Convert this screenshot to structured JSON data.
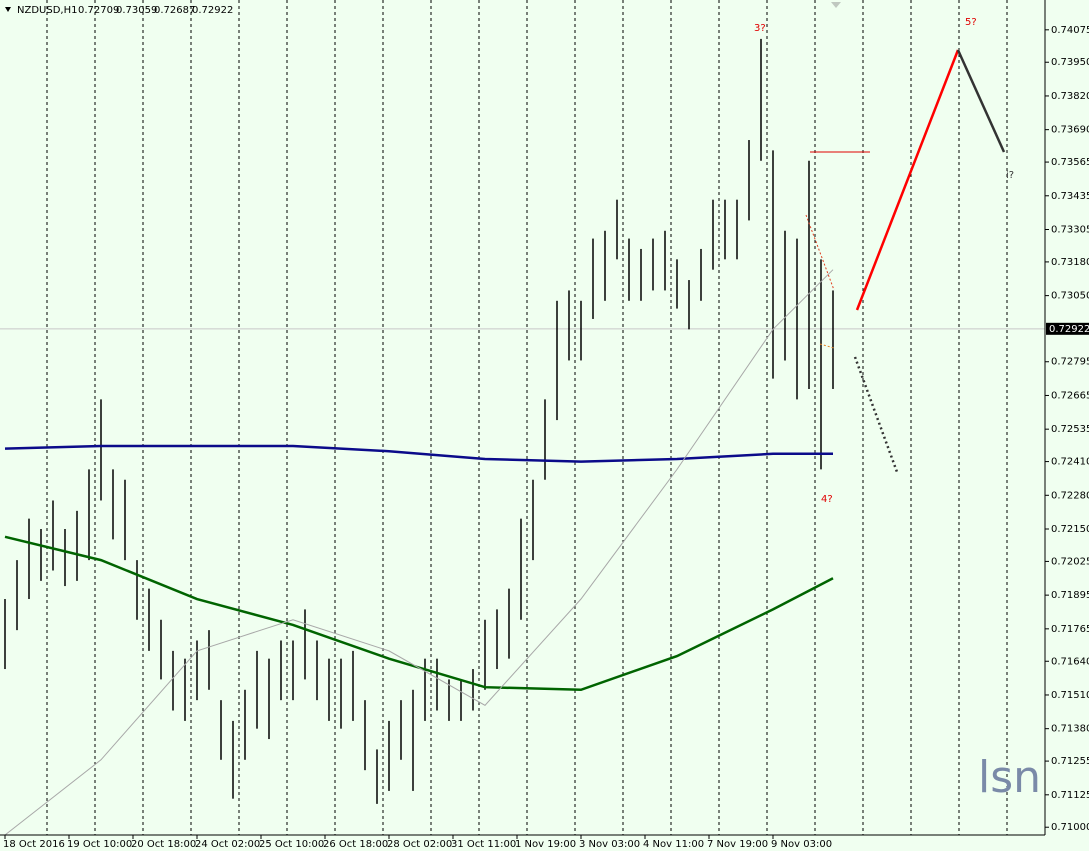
{
  "chart_data": {
    "type": "ohlc",
    "symbol": "NZDUSD,H1",
    "quote": [
      0.72709,
      0.73059,
      0.72687,
      0.72922
    ],
    "color": "#000000",
    "x": [
      0,
      6,
      12,
      18,
      24,
      30,
      36,
      42,
      48,
      54,
      60,
      66,
      72,
      78,
      84,
      90,
      96,
      102,
      108,
      114,
      120,
      126,
      132,
      138,
      144,
      150,
      156,
      162,
      168,
      174,
      180,
      186,
      192,
      198,
      204,
      210,
      216,
      222,
      228,
      234,
      240,
      246,
      252,
      258,
      264,
      270,
      276,
      282,
      288,
      294,
      300,
      306,
      312,
      318,
      324,
      330,
      336,
      342,
      348,
      354,
      360,
      366,
      372,
      378,
      384,
      390,
      396,
      402,
      408,
      414
    ],
    "high": [
      0.7188,
      0.7203,
      0.7219,
      0.7215,
      0.7226,
      0.7215,
      0.7222,
      0.7238,
      0.7265,
      0.7238,
      0.7234,
      0.7203,
      0.7192,
      0.718,
      0.7168,
      0.7165,
      0.7172,
      0.7176,
      0.7149,
      0.7141,
      0.7153,
      0.7168,
      0.7165,
      0.7172,
      0.7172,
      0.7184,
      0.7172,
      0.7165,
      0.7165,
      0.7168,
      0.7149,
      0.713,
      0.7141,
      0.7149,
      0.7153,
      0.7165,
      0.7165,
      0.7157,
      0.7157,
      0.7161,
      0.718,
      0.7184,
      0.7192,
      0.7219,
      0.7234,
      0.7265,
      0.7303,
      0.7307,
      0.7303,
      0.7327,
      0.733,
      0.7342,
      0.7327,
      0.7323,
      0.7327,
      0.733,
      0.7319,
      0.7311,
      0.7323,
      0.7342,
      0.7342,
      0.7342,
      0.7365,
      0.7404,
      0.7361,
      0.733,
      0.7327,
      0.7357,
      0.7319,
      0.7307
    ],
    "low": [
      0.7161,
      0.7176,
      0.7188,
      0.7195,
      0.7199,
      0.7193,
      0.7195,
      0.7203,
      0.7226,
      0.7211,
      0.7203,
      0.718,
      0.7168,
      0.7157,
      0.7145,
      0.7141,
      0.7149,
      0.7153,
      0.7126,
      0.7111,
      0.7126,
      0.7138,
      0.7134,
      0.7149,
      0.7149,
      0.7157,
      0.7149,
      0.7141,
      0.7138,
      0.7141,
      0.7122,
      0.7109,
      0.7114,
      0.7126,
      0.7114,
      0.7141,
      0.7145,
      0.7141,
      0.7141,
      0.7145,
      0.7153,
      0.7161,
      0.7165,
      0.718,
      0.7203,
      0.7234,
      0.7257,
      0.728,
      0.728,
      0.7296,
      0.7303,
      0.7319,
      0.7303,
      0.7303,
      0.7307,
      0.7307,
      0.73,
      0.7292,
      0.7303,
      0.7315,
      0.7319,
      0.7319,
      0.7334,
      0.7357,
      0.7273,
      0.728,
      0.7265,
      0.7269,
      0.7238,
      0.7269
    ],
    "series": [
      {
        "color": "#0b0b8a",
        "width": 2.5,
        "x": [
          0,
          48,
          96,
          144,
          192,
          240,
          288,
          336,
          384,
          414
        ],
        "values": [
          0.7246,
          0.7247,
          0.7247,
          0.7247,
          0.7245,
          0.7242,
          0.7241,
          0.7242,
          0.7244,
          0.7244
        ]
      },
      {
        "color": "#006400",
        "width": 2.5,
        "x": [
          0,
          48,
          96,
          144,
          192,
          240,
          288,
          336,
          384,
          414
        ],
        "values": [
          0.7212,
          0.7203,
          0.7188,
          0.7178,
          0.7165,
          0.7154,
          0.7153,
          0.7166,
          0.7184,
          0.7196
        ]
      },
      {
        "color": "#a8a8a8",
        "width": 1,
        "x": [
          0,
          48,
          96,
          144,
          192,
          240,
          288,
          336,
          384,
          414
        ],
        "values": [
          0.7097,
          0.7126,
          0.7168,
          0.718,
          0.7168,
          0.7147,
          0.7188,
          0.7238,
          0.7292,
          0.7315
        ]
      }
    ],
    "xlim": [
      -2.5,
      520
    ],
    "xticks": [
      {
        "value": 0,
        "label": "18 Oct 2016"
      },
      {
        "value": 32,
        "label": "19 Oct 10:00"
      },
      {
        "value": 64,
        "label": "20 Oct 18:00"
      },
      {
        "value": 96,
        "label": "24 Oct 02:00"
      },
      {
        "value": 128,
        "label": "25 Oct 10:00"
      },
      {
        "value": 160,
        "label": "26 Oct 18:00"
      },
      {
        "value": 192,
        "label": "28 Oct 02:00"
      },
      {
        "value": 224,
        "label": "31 Oct 11:00"
      },
      {
        "value": 256,
        "label": "1 Nov 19:00"
      },
      {
        "value": 288,
        "label": "3 Nov 03:00"
      },
      {
        "value": 320,
        "label": "4 Nov 11:00"
      },
      {
        "value": 352,
        "label": "7 Nov 19:00"
      },
      {
        "value": 384,
        "label": "9 Nov 03:00"
      }
    ],
    "ylim": [
      0.7097,
      0.7419
    ],
    "yticks": [
      0.74075,
      {
        "value": 0.7395,
        "label": "0.73950"
      },
      {
        "value": 0.7382,
        "label": "0.73820"
      },
      {
        "value": 0.7369,
        "label": "0.73690"
      },
      0.73565,
      0.73435,
      0.73305,
      {
        "value": 0.7318,
        "label": "0.73180"
      },
      {
        "value": 0.7305,
        "label": "0.73050"
      },
      0.72795,
      0.72665,
      0.72535,
      {
        "value": 0.7241,
        "label": "0.72410"
      },
      {
        "value": 0.7228,
        "label": "0.72280"
      },
      {
        "value": 0.7215,
        "label": "0.72150"
      },
      0.72025,
      0.71895,
      0.71765,
      {
        "value": 0.7164,
        "label": "0.71640"
      },
      {
        "value": 0.7151,
        "label": "0.71510"
      },
      {
        "value": 0.7138,
        "label": "0.71380"
      },
      0.71255,
      0.71125,
      {
        "value": 0.71,
        "label": "0.71000"
      }
    ],
    "annotations": [
      "3?",
      "5?",
      "i?",
      "4?"
    ],
    "watermark": "lsn"
  }
}
